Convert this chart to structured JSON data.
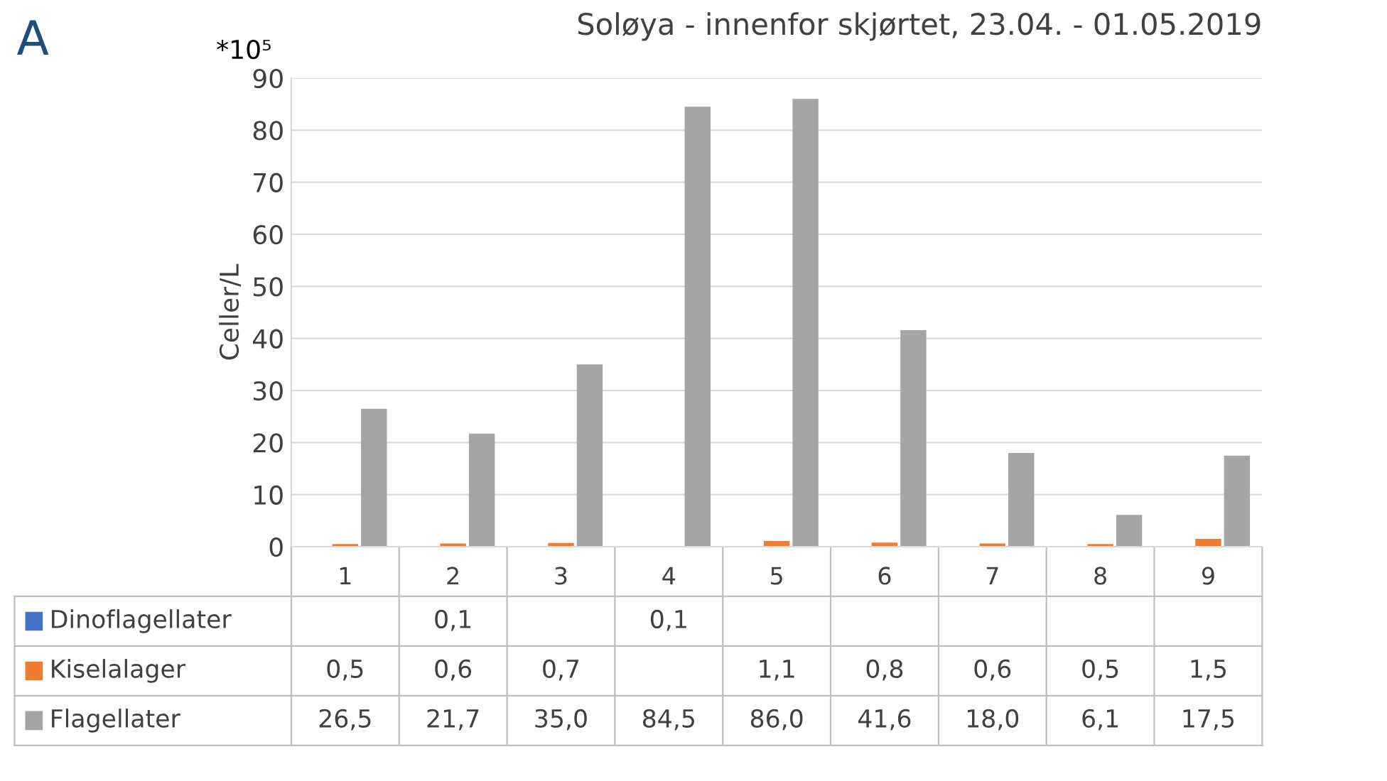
{
  "chart_data": {
    "type": "bar",
    "title": "Soløya - innenfor skjørtet, 23.04. - 01.05.2019",
    "ylabel": "Celler/L",
    "annotations": [
      "A",
      "*10⁵"
    ],
    "categories": [
      "1",
      "2",
      "3",
      "4",
      "5",
      "6",
      "7",
      "8",
      "9"
    ],
    "series": [
      {
        "name": "Dinoflagellater",
        "color": "#4472c4",
        "values": [
          null,
          0.1,
          null,
          0.1,
          null,
          null,
          null,
          null,
          null
        ],
        "value_labels": [
          null,
          "0,1",
          null,
          "0,1",
          null,
          null,
          null,
          null,
          null
        ]
      },
      {
        "name": "Kiselalager",
        "color": "#ed7d31",
        "values": [
          0.5,
          0.6,
          0.7,
          null,
          1.1,
          0.8,
          0.6,
          0.5,
          1.5
        ],
        "value_labels": [
          "0,5",
          "0,6",
          "0,7",
          null,
          "1,1",
          "0,8",
          "0,6",
          "0,5",
          "1,5"
        ]
      },
      {
        "name": "Flagellater",
        "color": "#a5a5a5",
        "values": [
          26.5,
          21.7,
          35.0,
          84.5,
          86.0,
          41.6,
          18.0,
          6.1,
          17.5
        ],
        "value_labels": [
          "26,5",
          "21,7",
          "35,0",
          "84,5",
          "86,0",
          "41,6",
          "18,0",
          "6,1",
          "17,5"
        ]
      }
    ],
    "ylim": [
      0,
      90
    ],
    "yticks": [
      0,
      10,
      20,
      30,
      40,
      50,
      60,
      70,
      80,
      90
    ],
    "grid": "y",
    "legend": "bottom"
  }
}
